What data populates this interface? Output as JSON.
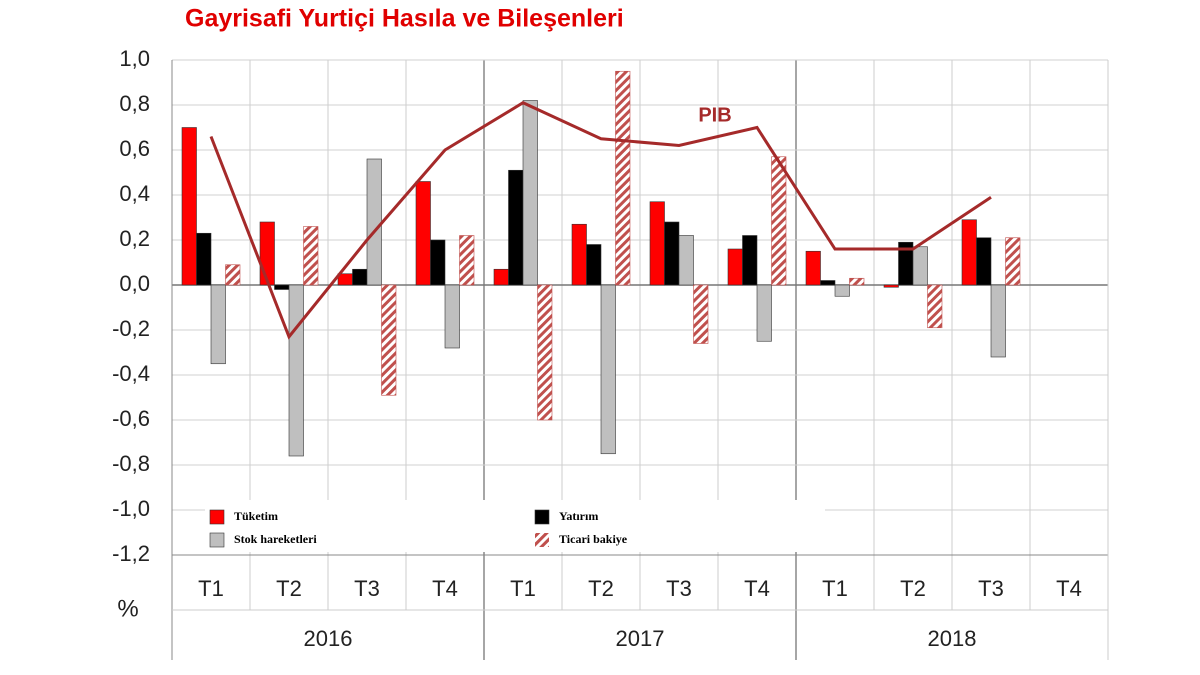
{
  "chart_data": {
    "type": "bar",
    "title": "Gayrisafi Yurtiçi Hasıla ve Bileşenleri",
    "y_label": "%",
    "categories": [
      "T1",
      "T2",
      "T3",
      "T4",
      "T1",
      "T2",
      "T3",
      "T4",
      "T1",
      "T2",
      "T3",
      "T4"
    ],
    "groups": [
      "2016",
      "2017",
      "2018"
    ],
    "ylim": [
      -1.2,
      1.0
    ],
    "yticks": [
      {
        "value": -1.2,
        "label": "-1,2"
      },
      {
        "value": -1.0,
        "label": "-1,0"
      },
      {
        "value": -0.8,
        "label": "-0,8"
      },
      {
        "value": -0.6,
        "label": "-0,6"
      },
      {
        "value": -0.4,
        "label": "-0,4"
      },
      {
        "value": -0.2,
        "label": "-0,2"
      },
      {
        "value": 0,
        "label": "0,0"
      },
      {
        "value": 0.2,
        "label": "0,2"
      },
      {
        "value": 0.4,
        "label": "0,4"
      },
      {
        "value": 0.6,
        "label": "0,6"
      },
      {
        "value": 0.8,
        "label": "0,8"
      },
      {
        "value": 1.0,
        "label": "1,0"
      }
    ],
    "grid": true,
    "series": [
      {
        "name": "Tüketim",
        "color": "#ff0000",
        "kind": "bar",
        "values": [
          0.7,
          0.28,
          0.05,
          0.46,
          0.07,
          0.27,
          0.37,
          0.16,
          0.15,
          -0.01,
          0.29,
          null
        ]
      },
      {
        "name": "Yatırım",
        "color": "#000000",
        "kind": "bar",
        "values": [
          0.23,
          -0.02,
          0.07,
          0.2,
          0.51,
          0.18,
          0.28,
          0.22,
          0.02,
          0.19,
          0.21,
          null
        ]
      },
      {
        "name": "Stok hareketleri",
        "color": "#bfbfbf",
        "kind": "bar",
        "values": [
          -0.35,
          -0.76,
          0.56,
          -0.28,
          0.82,
          -0.75,
          0.22,
          -0.25,
          -0.05,
          0.17,
          -0.32,
          null
        ]
      },
      {
        "name": "Ticari bakiye",
        "color": "#c0504d",
        "kind": "bar",
        "pattern": "hatch",
        "values": [
          0.09,
          0.26,
          -0.49,
          0.22,
          -0.6,
          0.95,
          -0.26,
          0.57,
          0.03,
          -0.19,
          0.21,
          null
        ]
      },
      {
        "name": "PIB",
        "color": "#a52a2a",
        "kind": "line",
        "values": [
          0.66,
          -0.23,
          0.2,
          0.6,
          0.81,
          0.65,
          0.62,
          0.7,
          0.16,
          0.16,
          0.39,
          null
        ]
      }
    ]
  }
}
